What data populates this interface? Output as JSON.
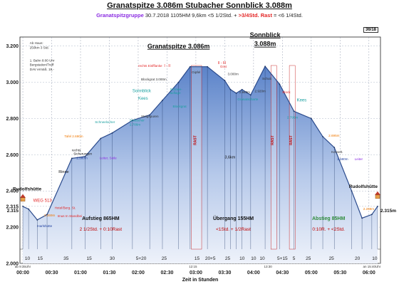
{
  "header": {
    "title": "Granatspitze 3.086m Stubacher Sonnblick 3.088m",
    "subtitle_group": "Granatspitzgruppe",
    "subtitle_stats": "30.7.2018    1105HM    9,6km    <5 1/2Std. +",
    "subtitle_rast": ">3/4Std. Rast",
    "subtitle_total": "= <6 1/4Std.",
    "badge": "36/18"
  },
  "chart_data": {
    "type": "area",
    "xlabel": "Zeit in Stunden",
    "ylabel": "",
    "xlim": [
      -0.05,
      6.2
    ],
    "ylim": [
      2000,
      3250
    ],
    "x_ticks": [
      {
        "v": 0.0,
        "label": "00:00"
      },
      {
        "v": 0.5,
        "label": "00:30"
      },
      {
        "v": 1.0,
        "label": "01:00"
      },
      {
        "v": 1.5,
        "label": "01:30"
      },
      {
        "v": 2.0,
        "label": "02:00"
      },
      {
        "v": 2.5,
        "label": "02:30"
      },
      {
        "v": 3.0,
        "label": "03:00"
      },
      {
        "v": 3.5,
        "label": "03:30"
      },
      {
        "v": 4.0,
        "label": "04:00"
      },
      {
        "v": 4.5,
        "label": "04:30"
      },
      {
        "v": 5.0,
        "label": "05:00"
      },
      {
        "v": 5.5,
        "label": "05:30"
      },
      {
        "v": 6.0,
        "label": "06:00"
      }
    ],
    "y_ticks": [
      {
        "v": 2000,
        "label": "2.000"
      },
      {
        "v": 2200,
        "label": "2.200"
      },
      {
        "v": 2315,
        "label": "2.315"
      },
      {
        "v": 2400,
        "label": "2.400"
      },
      {
        "v": 2600,
        "label": "2.600"
      },
      {
        "v": 2800,
        "label": "2.800"
      },
      {
        "v": 3000,
        "label": "3.000"
      },
      {
        "v": 3200,
        "label": "3.200"
      }
    ],
    "profile": [
      [
        0.0,
        2315
      ],
      [
        0.1,
        2300
      ],
      [
        0.25,
        2240
      ],
      [
        0.42,
        2270
      ],
      [
        0.85,
        2580
      ],
      [
        1.08,
        2590
      ],
      [
        1.35,
        2690
      ],
      [
        1.55,
        2720
      ],
      [
        1.9,
        2790
      ],
      [
        2.2,
        2820
      ],
      [
        2.42,
        2900
      ],
      [
        2.7,
        3000
      ],
      [
        2.9,
        3086
      ],
      [
        3.2,
        3086
      ],
      [
        3.5,
        3010
      ],
      [
        3.6,
        2960
      ],
      [
        3.7,
        2940
      ],
      [
        3.8,
        2960
      ],
      [
        3.95,
        2930
      ],
      [
        4.2,
        3088
      ],
      [
        4.45,
        2990
      ],
      [
        4.7,
        2840
      ],
      [
        5.0,
        2800
      ],
      [
        5.2,
        2700
      ],
      [
        5.4,
        2640
      ],
      [
        5.7,
        2400
      ],
      [
        5.88,
        2250
      ],
      [
        6.05,
        2270
      ],
      [
        6.15,
        2315
      ]
    ],
    "rast_bands": [
      [
        2.92,
        3.1
      ],
      [
        4.3,
        4.4
      ],
      [
        4.62,
        4.72
      ]
    ],
    "rast_label": "RAST",
    "segment_minutes": [
      {
        "x": 0.08,
        "label": "10"
      },
      {
        "x": 0.3,
        "label": "15"
      },
      {
        "x": 0.75,
        "label": "35"
      },
      {
        "x": 1.15,
        "label": "15"
      },
      {
        "x": 1.55,
        "label": "30"
      },
      {
        "x": 2.05,
        "label": "5+20"
      },
      {
        "x": 2.45,
        "label": "25"
      },
      {
        "x": 3.02,
        "label": "15"
      },
      {
        "x": 3.25,
        "label": "20+5"
      },
      {
        "x": 3.55,
        "label": "25"
      },
      {
        "x": 3.8,
        "label": "10"
      },
      {
        "x": 4.0,
        "label": "10"
      },
      {
        "x": 4.15,
        "label": "10"
      },
      {
        "x": 4.5,
        "label": "5+15"
      },
      {
        "x": 4.7,
        "label": "5"
      },
      {
        "x": 4.95,
        "label": "25"
      },
      {
        "x": 5.35,
        "label": "25"
      },
      {
        "x": 5.8,
        "label": "20"
      },
      {
        "x": 6.1,
        "label": "10"
      }
    ],
    "sections": [
      {
        "name": "Aufstieg 865HM",
        "detail": "2 1/2Std. + 0:10Rast",
        "x_center": 1.35,
        "color": "#111111"
      },
      {
        "name": "Übergang 155HM",
        "detail": "<1Std. + 1/2Rast",
        "x_center": 3.65,
        "color": "#111111"
      },
      {
        "name": "Abstieg 85HM",
        "detail": "0:10R. + <2Std.",
        "x_center": 5.3,
        "color": "#2e8b3a"
      }
    ],
    "peaks": [
      {
        "name": "Granatspitze 3.086m",
        "x": 2.7,
        "y": 3188,
        "size": 9
      },
      {
        "name": "Sonnblick",
        "x": 4.2,
        "y": 3250,
        "size": 9
      },
      {
        "name": "3.088m",
        "x": 4.2,
        "y": 3200,
        "size": 9
      }
    ],
    "annotations": [
      {
        "t": "Ab Haus:",
        "x": 0.12,
        "y": 3210,
        "c": "#333333"
      },
      {
        "t": "250km 3 Std.",
        "x": 0.12,
        "y": 3185,
        "c": "#333333"
      },
      {
        "t": "1. Bahn 8:00 Uhr",
        "x": 0.12,
        "y": 3115,
        "c": "#333333"
      },
      {
        "t": "Bergstation/Treff",
        "x": 0.12,
        "y": 3090,
        "c": "#333333"
      },
      {
        "t": "DAV ermäß. 19,-",
        "x": 0.12,
        "y": 3065,
        "c": "#333333"
      },
      {
        "t": "WEG 513",
        "x": 0.18,
        "y": 2340,
        "c": "#e32626",
        "size": 6
      },
      {
        "t": "Rinne",
        "x": 0.62,
        "y": 2500,
        "c": "#111111",
        "size": 5.5
      },
      {
        "t": "rechts",
        "x": 0.85,
        "y": 2620,
        "c": "#111111"
      },
      {
        "t": "Sicherungen",
        "x": 0.88,
        "y": 2600,
        "c": "#111111"
      },
      {
        "t": "2.580m",
        "x": 0.93,
        "y": 2575,
        "c": "#1f3f9f"
      },
      {
        "t": "Leiter, Seile",
        "x": 1.33,
        "y": 2575,
        "c": "#8a2be2"
      },
      {
        "t": "Tafel 2.690m",
        "x": 0.72,
        "y": 2695,
        "c": "#f07800"
      },
      {
        "t": "Schneelocher",
        "x": 1.25,
        "y": 2775,
        "c": "#1aa0a0"
      },
      {
        "t": "Sonnblick",
        "x": 1.9,
        "y": 2945,
        "c": "#1aa0a0",
        "size": 6
      },
      {
        "t": "Kees",
        "x": 2.0,
        "y": 2905,
        "c": "#1aa0a0",
        "size": 6
      },
      {
        "t": "Stubacher",
        "x": 1.85,
        "y": 2785,
        "c": "#1aa0a0"
      },
      {
        "t": "2.786m",
        "x": 1.85,
        "y": 2760,
        "c": "#1aa0a0"
      },
      {
        "t": "Steigspuren",
        "x": 2.05,
        "y": 2805,
        "c": "#333333"
      },
      {
        "t": "rechts Eisfflanke",
        "x": 2.0,
        "y": 3085,
        "c": "#e32626"
      },
      {
        "t": "I - II",
        "x": 2.45,
        "y": 3085,
        "c": "#e32626",
        "size": 5
      },
      {
        "t": "Blockgrat 3.000m",
        "x": 2.05,
        "y": 3010,
        "c": "#333333"
      },
      {
        "t": "Schnee-",
        "x": 2.55,
        "y": 2955,
        "c": "#1aa0a0"
      },
      {
        "t": "auflage",
        "x": 2.55,
        "y": 2935,
        "c": "#1aa0a0"
      },
      {
        "t": "Blockgrat",
        "x": 2.6,
        "y": 2860,
        "c": "#1aa0a0"
      },
      {
        "t": "Gipfel",
        "x": 2.93,
        "y": 3050,
        "c": "#333333"
      },
      {
        "t": "Grat",
        "x": 3.42,
        "y": 3080,
        "c": "#e32626"
      },
      {
        "t": "II - III",
        "x": 3.38,
        "y": 3100,
        "c": "#e32626",
        "size": 5
      },
      {
        "t": "3.000m",
        "x": 3.55,
        "y": 3040,
        "c": "#333333"
      },
      {
        "t": "2.940m",
        "x": 3.75,
        "y": 2940,
        "c": "#333333"
      },
      {
        "t": "Granatscharte",
        "x": 3.72,
        "y": 2900,
        "c": "#1aa0a0"
      },
      {
        "t": "Schutt",
        "x": 4.15,
        "y": 3015,
        "c": "#333333"
      },
      {
        "t": "2.920m",
        "x": 4.02,
        "y": 2945,
        "c": "#333333"
      },
      {
        "t": "Block",
        "x": 4.5,
        "y": 2940,
        "c": "#e32626"
      },
      {
        "t": "Kees",
        "x": 4.75,
        "y": 2895,
        "c": "#1aa0a0",
        "size": 6
      },
      {
        "t": "2.795m",
        "x": 4.58,
        "y": 2800,
        "c": "#1aa0a0"
      },
      {
        "t": "2.695m",
        "x": 5.3,
        "y": 2700,
        "c": "#f07800"
      },
      {
        "t": "2.580m",
        "x": 5.45,
        "y": 2570,
        "c": "#1f3f9f"
      },
      {
        "t": "Leiter",
        "x": 5.75,
        "y": 2570,
        "c": "#8a2be2"
      },
      {
        "t": "Kesselt.",
        "x": 5.35,
        "y": 2610,
        "c": "#333333"
      },
      {
        "t": "Harlshütte",
        "x": 0.25,
        "y": 2200,
        "c": "#1f3f9f"
      },
      {
        "t": "2.269m",
        "x": 0.37,
        "y": 2260,
        "c": "#f07800"
      },
      {
        "t": "Hotel/Berg. St.",
        "x": 0.55,
        "y": 2300,
        "c": "#e32626"
      },
      {
        "t": "Imus In Standbei",
        "x": 0.6,
        "y": 2255,
        "c": "#e32626"
      },
      {
        "t": "2.269m",
        "x": 5.9,
        "y": 2295,
        "c": "#f07800"
      },
      {
        "t": "3,6km",
        "x": 3.5,
        "y": 2580,
        "c": "#111111",
        "size": 5.5
      }
    ],
    "huts": [
      {
        "label": "Rudolfshütte",
        "x": 0.0,
        "y": 2355
      },
      {
        "label": "Rudolfshütte",
        "x": 6.15,
        "y": 2370
      }
    ],
    "elev_labels": [
      {
        "t": "2.315",
        "x": 0.0,
        "y": 2315
      },
      {
        "t": "2.315m",
        "x": 6.15,
        "y": 2315
      }
    ],
    "clock_notes": [
      {
        "t": "ab 9:35Uhr",
        "x": 0.0
      },
      {
        "t": "12:15",
        "x": 2.95
      },
      {
        "t": "13:30",
        "x": 4.25
      },
      {
        "t": "an 15:40Uhr",
        "x": 6.05
      }
    ]
  }
}
